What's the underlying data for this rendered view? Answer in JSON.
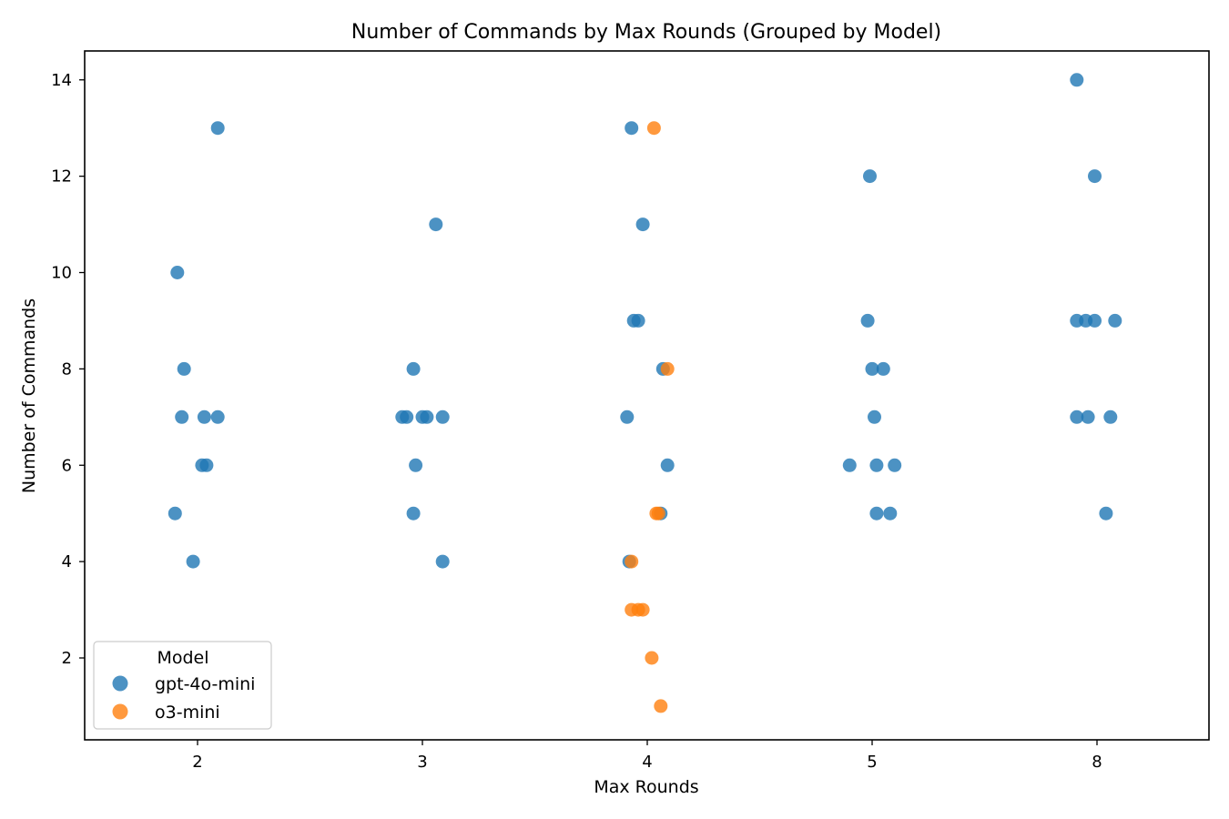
{
  "chart_data": {
    "type": "scatter",
    "title": "Number of Commands by Max Rounds (Grouped by Model)",
    "xlabel": "Max Rounds",
    "ylabel": "Number of Commands",
    "categories": [
      "2",
      "3",
      "4",
      "5",
      "8"
    ],
    "ylim": [
      0.3,
      14.6
    ],
    "yticks": [
      2,
      4,
      6,
      8,
      10,
      12,
      14
    ],
    "grid": false,
    "legend": {
      "title": "Model",
      "placement": "lower-left"
    },
    "series": [
      {
        "name": "gpt-4o-mini",
        "color": "#1f77b4",
        "points": [
          {
            "x": 1.91,
            "y": 10
          },
          {
            "x": 2.09,
            "y": 13
          },
          {
            "x": 1.94,
            "y": 8
          },
          {
            "x": 1.93,
            "y": 7
          },
          {
            "x": 2.03,
            "y": 7
          },
          {
            "x": 2.09,
            "y": 7
          },
          {
            "x": 2.02,
            "y": 6
          },
          {
            "x": 2.04,
            "y": 6
          },
          {
            "x": 1.9,
            "y": 5
          },
          {
            "x": 1.98,
            "y": 4
          },
          {
            "x": 3.06,
            "y": 11
          },
          {
            "x": 2.96,
            "y": 8
          },
          {
            "x": 2.91,
            "y": 7
          },
          {
            "x": 2.93,
            "y": 7
          },
          {
            "x": 3.0,
            "y": 7
          },
          {
            "x": 3.02,
            "y": 7
          },
          {
            "x": 3.09,
            "y": 7
          },
          {
            "x": 2.97,
            "y": 6
          },
          {
            "x": 2.96,
            "y": 5
          },
          {
            "x": 3.09,
            "y": 4
          },
          {
            "x": 3.93,
            "y": 13
          },
          {
            "x": 3.98,
            "y": 11
          },
          {
            "x": 3.94,
            "y": 9
          },
          {
            "x": 3.96,
            "y": 9
          },
          {
            "x": 4.07,
            "y": 8
          },
          {
            "x": 3.91,
            "y": 7
          },
          {
            "x": 4.09,
            "y": 6
          },
          {
            "x": 4.06,
            "y": 5
          },
          {
            "x": 3.92,
            "y": 4
          },
          {
            "x": 4.98,
            "y": 9
          },
          {
            "x": 4.99,
            "y": 12
          },
          {
            "x": 5.0,
            "y": 8
          },
          {
            "x": 5.05,
            "y": 8
          },
          {
            "x": 5.01,
            "y": 7
          },
          {
            "x": 4.9,
            "y": 6
          },
          {
            "x": 5.02,
            "y": 6
          },
          {
            "x": 5.1,
            "y": 6
          },
          {
            "x": 5.02,
            "y": 5
          },
          {
            "x": 5.08,
            "y": 5
          },
          {
            "x": 7.91,
            "y": 14
          },
          {
            "x": 7.99,
            "y": 12
          },
          {
            "x": 7.91,
            "y": 9
          },
          {
            "x": 7.95,
            "y": 9
          },
          {
            "x": 7.99,
            "y": 9
          },
          {
            "x": 8.08,
            "y": 9
          },
          {
            "x": 7.91,
            "y": 7
          },
          {
            "x": 7.96,
            "y": 7
          },
          {
            "x": 8.06,
            "y": 7
          },
          {
            "x": 8.04,
            "y": 5
          }
        ]
      },
      {
        "name": "o3-mini",
        "color": "#ff7f0e",
        "points": [
          {
            "x": 4.03,
            "y": 13
          },
          {
            "x": 4.09,
            "y": 8
          },
          {
            "x": 4.04,
            "y": 5
          },
          {
            "x": 4.05,
            "y": 5
          },
          {
            "x": 3.93,
            "y": 4
          },
          {
            "x": 3.93,
            "y": 3
          },
          {
            "x": 3.96,
            "y": 3
          },
          {
            "x": 3.98,
            "y": 3
          },
          {
            "x": 4.02,
            "y": 2
          },
          {
            "x": 4.06,
            "y": 1
          }
        ]
      }
    ]
  }
}
